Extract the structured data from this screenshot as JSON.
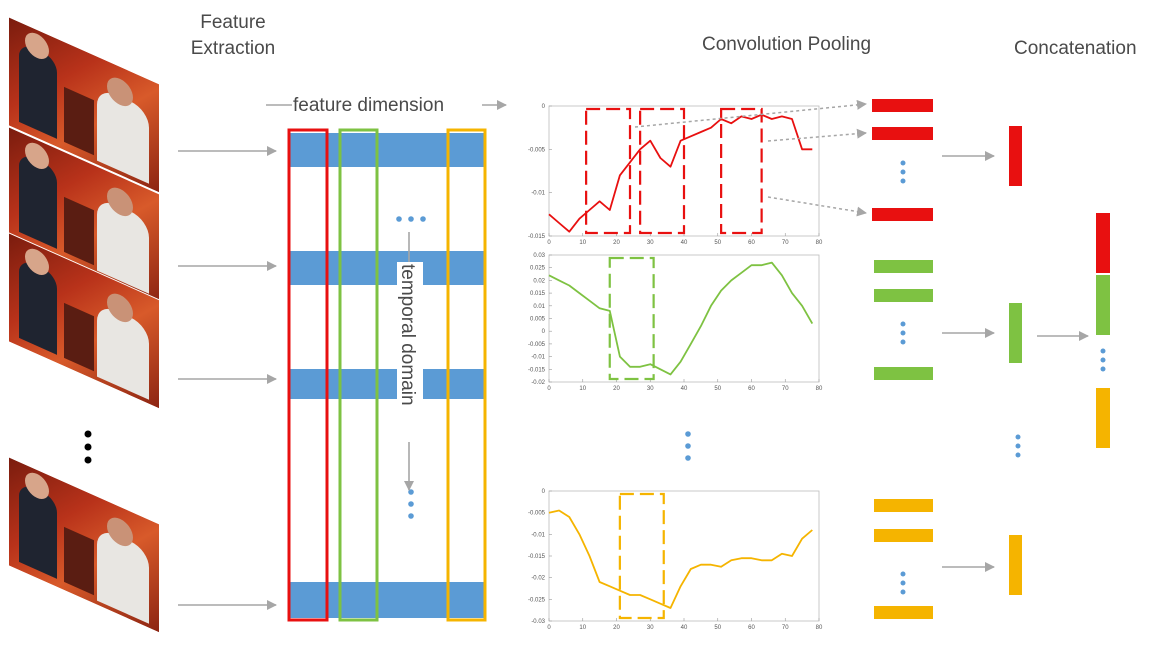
{
  "labels": {
    "feature_extraction_line1": "Feature",
    "feature_extraction_line2": "Extraction",
    "feature_dimension": "feature dimension",
    "temporal_domain": "temporal domain",
    "convolution_pooling": "Convolution Pooling",
    "concatenation": "Concatenation"
  },
  "colors": {
    "red": "#e81010",
    "green": "#7ec242",
    "yellow": "#f5b400",
    "blue": "#5b9bd5",
    "arrow": "#a6a6a6"
  },
  "chart_data": [
    {
      "type": "line",
      "color": "red",
      "x": [
        0,
        3,
        6,
        9,
        12,
        15,
        18,
        21,
        24,
        27,
        30,
        33,
        36,
        39,
        42,
        45,
        48,
        51,
        54,
        57,
        60,
        63,
        66,
        69,
        72,
        75,
        78
      ],
      "y": [
        -0.0125,
        -0.0135,
        -0.0145,
        -0.013,
        -0.012,
        -0.011,
        -0.012,
        -0.008,
        -0.0065,
        -0.005,
        -0.004,
        -0.006,
        -0.007,
        -0.004,
        -0.0035,
        -0.003,
        -0.0025,
        -0.0015,
        -0.002,
        -0.0012,
        -0.0015,
        -0.001,
        -0.0015,
        -0.0012,
        -0.0015,
        -0.005,
        -0.005
      ],
      "yticks": [
        "0",
        "-0.005",
        "-0.01",
        "-0.015"
      ],
      "xticks": [
        "0",
        "10",
        "20",
        "30",
        "40",
        "50",
        "60",
        "70",
        "80"
      ],
      "ylim": [
        -0.015,
        0
      ],
      "xlim": [
        0,
        80
      ],
      "boxes": [
        [
          11,
          24
        ],
        [
          27,
          40
        ],
        [
          51,
          63
        ]
      ]
    },
    {
      "type": "line",
      "color": "green",
      "x": [
        0,
        3,
        6,
        9,
        12,
        15,
        18,
        21,
        24,
        27,
        30,
        33,
        36,
        39,
        42,
        45,
        48,
        51,
        54,
        57,
        60,
        63,
        66,
        69,
        72,
        75,
        78
      ],
      "y": [
        0.022,
        0.02,
        0.018,
        0.015,
        0.012,
        0.009,
        0.008,
        -0.01,
        -0.014,
        -0.014,
        -0.013,
        -0.015,
        -0.017,
        -0.012,
        -0.005,
        0.002,
        0.01,
        0.016,
        0.02,
        0.023,
        0.026,
        0.026,
        0.027,
        0.022,
        0.015,
        0.01,
        0.003
      ],
      "yticks": [
        "0.03",
        "0.025",
        "0.02",
        "0.015",
        "0.01",
        "0.005",
        "0",
        "-0.005",
        "-0.01",
        "-0.015",
        "-0.02"
      ],
      "xticks": [
        "0",
        "10",
        "20",
        "30",
        "40",
        "50",
        "60",
        "70",
        "80"
      ],
      "ylim": [
        -0.02,
        0.03
      ],
      "xlim": [
        0,
        80
      ],
      "boxes": [
        [
          18,
          31
        ]
      ]
    },
    {
      "type": "line",
      "color": "yellow",
      "x": [
        0,
        3,
        6,
        9,
        12,
        15,
        18,
        21,
        24,
        27,
        30,
        33,
        36,
        39,
        42,
        45,
        48,
        51,
        54,
        57,
        60,
        63,
        66,
        69,
        72,
        75,
        78
      ],
      "y": [
        -0.005,
        -0.0045,
        -0.006,
        -0.01,
        -0.015,
        -0.021,
        -0.022,
        -0.023,
        -0.024,
        -0.024,
        -0.025,
        -0.026,
        -0.027,
        -0.022,
        -0.018,
        -0.017,
        -0.017,
        -0.0175,
        -0.016,
        -0.0155,
        -0.0155,
        -0.016,
        -0.016,
        -0.0145,
        -0.015,
        -0.011,
        -0.009
      ],
      "yticks": [
        "0",
        "-0.005",
        "-0.01",
        "-0.015",
        "-0.02",
        "-0.025",
        "-0.03"
      ],
      "xticks": [
        "0",
        "10",
        "20",
        "30",
        "40",
        "50",
        "60",
        "70",
        "80"
      ],
      "ylim": [
        -0.03,
        0
      ],
      "xlim": [
        0,
        80
      ],
      "boxes": [
        [
          21,
          34
        ]
      ]
    }
  ]
}
